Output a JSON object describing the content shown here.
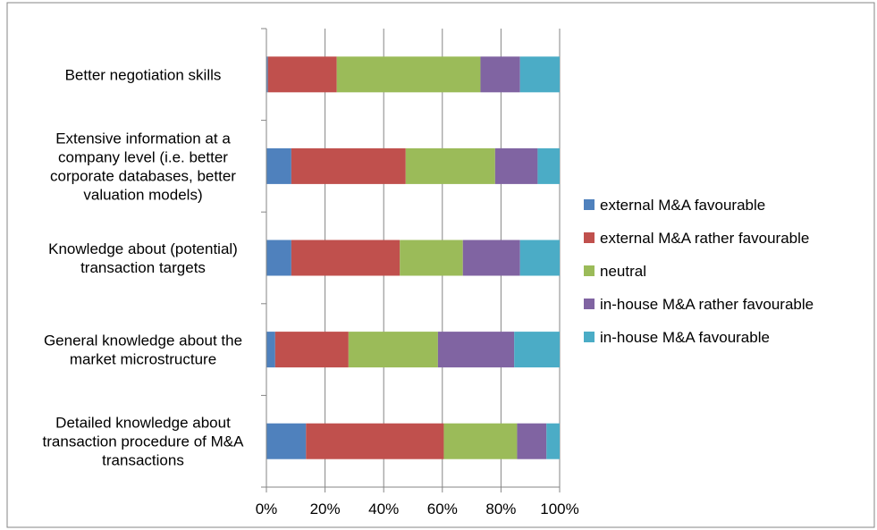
{
  "chart_data": {
    "type": "bar",
    "orientation": "horizontal",
    "stacked": true,
    "normalized": true,
    "title": "",
    "xlabel": "",
    "ylabel": "",
    "xlim": [
      0,
      100
    ],
    "x_ticks": [
      "0%",
      "20%",
      "40%",
      "60%",
      "80%",
      "100%"
    ],
    "grid": true,
    "legend_position": "right",
    "categories": [
      [
        "Better negotiation skills"
      ],
      [
        "Extensive information at a",
        "company level (i.e. better",
        "corporate databases, better",
        "valuation models)"
      ],
      [
        "Knowledge about (potential)",
        "transaction targets"
      ],
      [
        "General knowledge about the",
        "market microstructure"
      ],
      [
        "Detailed knowledge about",
        "transaction procedure of M&A",
        "transactions"
      ]
    ],
    "series": [
      {
        "name": "external M&A favourable",
        "color": "#4F81BD",
        "values": [
          0.5,
          8.5,
          8.5,
          3,
          13.5
        ]
      },
      {
        "name": "external M&A rather favourable",
        "color": "#C0504D",
        "values": [
          23.5,
          39,
          37,
          25,
          47
        ]
      },
      {
        "name": "neutral",
        "color": "#9BBB59",
        "values": [
          49,
          30.5,
          21.5,
          30.5,
          25
        ]
      },
      {
        "name": "in-house M&A rather favourable",
        "color": "#8064A2",
        "values": [
          13.5,
          14.5,
          19.5,
          26,
          10
        ]
      },
      {
        "name": "in-house M&A favourable",
        "color": "#4BACC6",
        "values": [
          13.5,
          7.5,
          13.5,
          15.5,
          4.5
        ]
      }
    ]
  }
}
